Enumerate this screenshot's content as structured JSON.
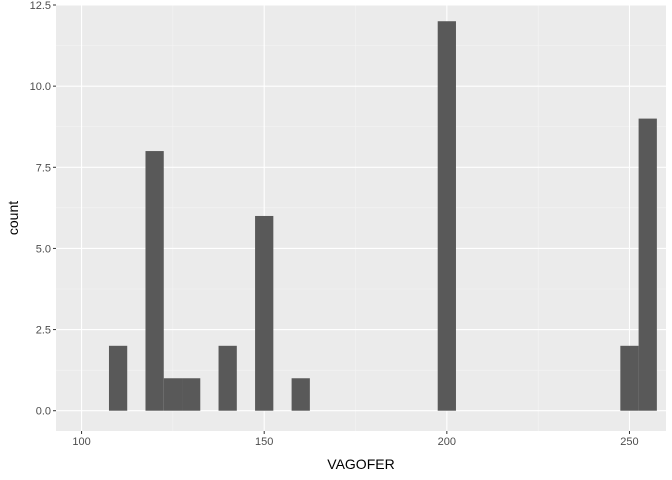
{
  "chart_data": {
    "type": "bar",
    "xlabel": "VAGOFER",
    "ylabel": "count",
    "xlim": [
      93,
      260
    ],
    "ylim": [
      -0.625,
      12.5
    ],
    "x_ticks": [
      100,
      150,
      200,
      250
    ],
    "x_tick_labels": [
      "100",
      "150",
      "200",
      "250"
    ],
    "x_minor_ticks": [
      125,
      175,
      225
    ],
    "y_ticks": [
      0,
      2.5,
      5,
      7.5,
      10,
      12.5
    ],
    "y_tick_labels": [
      "0.0",
      "2.5",
      "5.0",
      "7.5",
      "10.0",
      "12.5"
    ],
    "y_minor_ticks": [
      1.25,
      3.75,
      6.25,
      8.75,
      11.25
    ],
    "grid": true,
    "bin_width": 5,
    "bins": [
      {
        "x": 110,
        "count": 2
      },
      {
        "x": 120,
        "count": 8
      },
      {
        "x": 125,
        "count": 1
      },
      {
        "x": 130,
        "count": 1
      },
      {
        "x": 140,
        "count": 2
      },
      {
        "x": 150,
        "count": 6
      },
      {
        "x": 160,
        "count": 1
      },
      {
        "x": 200,
        "count": 12
      },
      {
        "x": 250,
        "count": 2
      },
      {
        "x": 255,
        "count": 9
      }
    ],
    "colors": {
      "panel": "#ebebeb",
      "grid_major": "#ffffff",
      "grid_minor": "#f4f4f4",
      "bar": "#595959",
      "tick": "#333333"
    }
  }
}
